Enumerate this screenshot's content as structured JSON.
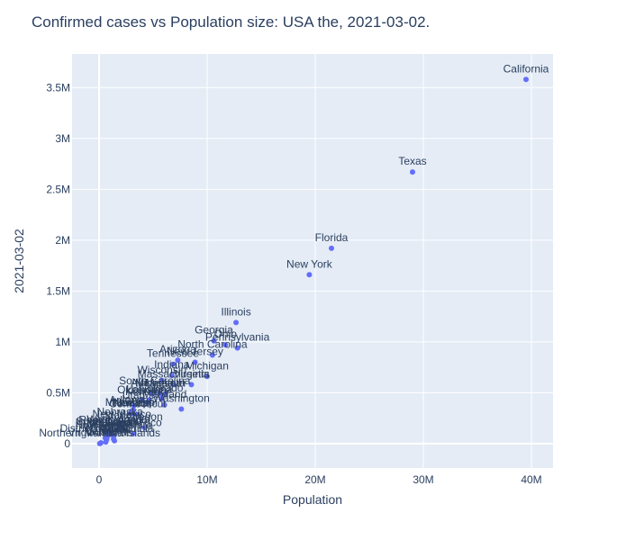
{
  "chart_data": {
    "type": "scatter",
    "title": "Confirmed cases vs Population size: USA the, 2021-03-02.",
    "xlabel": "Population",
    "ylabel": "2021-03-02",
    "xlim": [
      -2500000,
      42000000
    ],
    "ylim": [
      -240000,
      3830000
    ],
    "x_ticks": [
      {
        "value": 0,
        "label": "0"
      },
      {
        "value": 10000000,
        "label": "10M"
      },
      {
        "value": 20000000,
        "label": "20M"
      },
      {
        "value": 30000000,
        "label": "30M"
      },
      {
        "value": 40000000,
        "label": "40M"
      }
    ],
    "y_ticks": [
      {
        "value": 0,
        "label": "0"
      },
      {
        "value": 500000,
        "label": "0.5M"
      },
      {
        "value": 1000000,
        "label": "1M"
      },
      {
        "value": 1500000,
        "label": "1.5M"
      },
      {
        "value": 2000000,
        "label": "2M"
      },
      {
        "value": 2500000,
        "label": "2.5M"
      },
      {
        "value": 3000000,
        "label": "3M"
      },
      {
        "value": 3500000,
        "label": "3.5M"
      }
    ],
    "marker_color": "#636efa",
    "plot_bg": "#e5ecf6",
    "points": [
      {
        "label": "California",
        "x": 39500000,
        "y": 3580000
      },
      {
        "label": "Texas",
        "x": 29000000,
        "y": 2670000
      },
      {
        "label": "Florida",
        "x": 21500000,
        "y": 1920000
      },
      {
        "label": "New York",
        "x": 19450000,
        "y": 1660000
      },
      {
        "label": "Illinois",
        "x": 12670000,
        "y": 1190000
      },
      {
        "label": "Georgia",
        "x": 10620000,
        "y": 1010000
      },
      {
        "label": "Ohio",
        "x": 11690000,
        "y": 970000
      },
      {
        "label": "Pennsylvania",
        "x": 12800000,
        "y": 940000
      },
      {
        "label": "North Carolina",
        "x": 10490000,
        "y": 870000
      },
      {
        "label": "Arizona",
        "x": 7280000,
        "y": 820000
      },
      {
        "label": "New Jersey",
        "x": 8880000,
        "y": 800000
      },
      {
        "label": "Tennessee",
        "x": 6830000,
        "y": 780000
      },
      {
        "label": "Indiana",
        "x": 6730000,
        "y": 670000
      },
      {
        "label": "Michigan",
        "x": 9990000,
        "y": 660000
      },
      {
        "label": "Wisconsin",
        "x": 5820000,
        "y": 620000
      },
      {
        "label": "Massachusetts",
        "x": 6890000,
        "y": 580000
      },
      {
        "label": "Virginia",
        "x": 8540000,
        "y": 580000
      },
      {
        "label": "South Carolina",
        "x": 5150000,
        "y": 510000
      },
      {
        "label": "Minnesota",
        "x": 5640000,
        "y": 490000
      },
      {
        "label": "Missouri",
        "x": 6140000,
        "y": 490000
      },
      {
        "label": "Alabama",
        "x": 4900000,
        "y": 490000
      },
      {
        "label": "Louisiana",
        "x": 4650000,
        "y": 430000
      },
      {
        "label": "Oklahoma",
        "x": 3960000,
        "y": 425000
      },
      {
        "label": "Kentucky",
        "x": 4470000,
        "y": 405000
      },
      {
        "label": "Maryland",
        "x": 6050000,
        "y": 380000
      },
      {
        "label": "Washington",
        "x": 7610000,
        "y": 340000
      },
      {
        "label": "Utah",
        "x": 3210000,
        "y": 370000
      },
      {
        "label": "Iowa",
        "x": 3160000,
        "y": 330000
      },
      {
        "label": "Arkansas",
        "x": 3020000,
        "y": 320000
      },
      {
        "label": "Mississippi",
        "x": 2980000,
        "y": 300000
      },
      {
        "label": "Kansas",
        "x": 2910000,
        "y": 295000
      },
      {
        "label": "Nevada",
        "x": 3080000,
        "y": 295000
      },
      {
        "label": "Connecticut",
        "x": 3570000,
        "y": 285000
      },
      {
        "label": "Colorado",
        "x": 5760000,
        "y": 440000
      },
      {
        "label": "Oregon",
        "x": 4220000,
        "y": 157000
      },
      {
        "label": "New Mexico",
        "x": 2100000,
        "y": 185000
      },
      {
        "label": "Nebraska",
        "x": 1930000,
        "y": 205000
      },
      {
        "label": "Idaho",
        "x": 1790000,
        "y": 172000
      },
      {
        "label": "Puerto Rico",
        "x": 3190000,
        "y": 100000
      },
      {
        "label": "West Virginia",
        "x": 1790000,
        "y": 132000
      },
      {
        "label": "Rhode Island",
        "x": 1060000,
        "y": 128000
      },
      {
        "label": "South Dakota",
        "x": 885000,
        "y": 113000
      },
      {
        "label": "North Dakota",
        "x": 762000,
        "y": 100000
      },
      {
        "label": "Montana",
        "x": 1070000,
        "y": 100000
      },
      {
        "label": "Delaware",
        "x": 974000,
        "y": 88000
      },
      {
        "label": "New Hampshire",
        "x": 1360000,
        "y": 75000
      },
      {
        "label": "Alaska",
        "x": 731000,
        "y": 59000
      },
      {
        "label": "Wyoming",
        "x": 578000,
        "y": 55000
      },
      {
        "label": "District of Columbia",
        "x": 705000,
        "y": 41000
      },
      {
        "label": "Hawaii",
        "x": 1420000,
        "y": 28000
      },
      {
        "label": "Maine",
        "x": 1340000,
        "y": 45000
      },
      {
        "label": "Vermont",
        "x": 624000,
        "y": 15000
      },
      {
        "label": "Guam",
        "x": 168000,
        "y": 7700
      },
      {
        "label": "Virgin Islands",
        "x": 107000,
        "y": 2700
      },
      {
        "label": "Northern Mariana Islands",
        "x": 57000,
        "y": 140
      }
    ]
  }
}
